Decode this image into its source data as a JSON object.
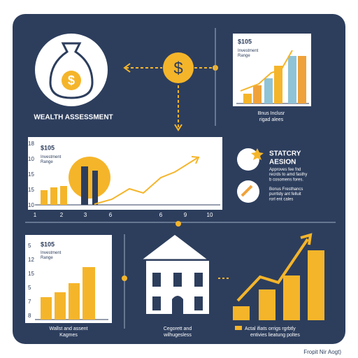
{
  "wealth": {
    "title": "WEALTH ASSESSMENT"
  },
  "top_chart": {
    "amount": "$105",
    "subtitle": "Investment\nRange",
    "caption_1": "Bnus Inclusr",
    "caption_2": "rigad alees"
  },
  "middle_chart": {
    "amount": "$105",
    "subtitle": "Investment\nRange",
    "y_labels": [
      "18",
      "10",
      "15",
      "15",
      "10"
    ],
    "x_labels": [
      "1",
      "2",
      "3",
      "6",
      "6",
      "9",
      "10"
    ]
  },
  "strategy": {
    "title_1": "STATCRY",
    "title_2": "AESION",
    "text_1": "Approves fee fnd\nrecrds to amd fasthy\nb cosomens fores.",
    "text_2": "Bonus Fresthancs\npurrtidy ant felluit\nrorl ent cales"
  },
  "bottom_chart": {
    "amount": "$105",
    "subtitle": "Investment\nRange",
    "y_labels": [
      "5",
      "12",
      "15",
      "5",
      "7",
      "8"
    ],
    "caption_1": "Wallst and assent",
    "caption_2": "Kagmes"
  },
  "house": {
    "caption_1": "Cegorett and",
    "caption_2": "wilhugesless"
  },
  "growth": {
    "caption_1": "Actal ifiats orrigs rgrbtly",
    "caption_2": "entivies lieatung poltes"
  },
  "footer": {
    "credit": "Fropit Nir Aogt)"
  }
}
